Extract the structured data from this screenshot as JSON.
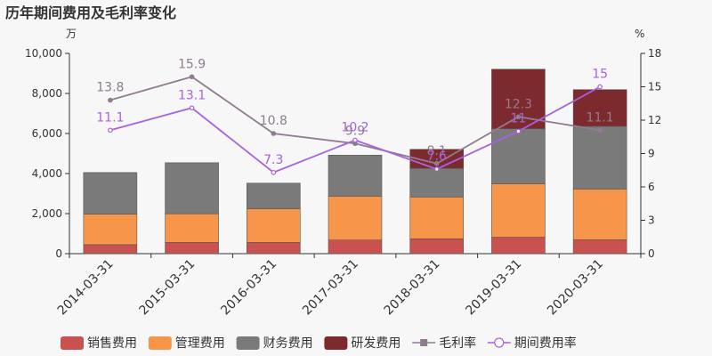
{
  "title": "历年期间费用及毛利率变化",
  "chart_data": {
    "type": "bar",
    "stacked": true,
    "title": "历年期间费用及毛利率变化",
    "y_unit_left": "万",
    "y_unit_right": "%",
    "categories": [
      "2014-03-31",
      "2015-03-31",
      "2016-03-31",
      "2017-03-31",
      "2018-03-31",
      "2019-03-31",
      "2020-03-31"
    ],
    "ylim": [
      0,
      10000
    ],
    "yticks": [
      "0",
      "2,000",
      "4,000",
      "6,000",
      "8,000",
      "10,000"
    ],
    "ylim_right": [
      0,
      18
    ],
    "yticks_right": [
      "0",
      "3",
      "6",
      "9",
      "12",
      "15",
      "18"
    ],
    "series": [
      {
        "name": "销售费用",
        "kind": "bar",
        "axis": "left",
        "color": "#c9514f",
        "values": [
          450,
          560,
          560,
          680,
          740,
          820,
          690
        ]
      },
      {
        "name": "管理费用",
        "kind": "bar",
        "axis": "left",
        "color": "#f7954a",
        "values": [
          1520,
          1430,
          1680,
          2190,
          2090,
          2660,
          2540
        ]
      },
      {
        "name": "财务费用",
        "kind": "bar",
        "axis": "left",
        "color": "#7a7a7a",
        "values": [
          2080,
          2550,
          1280,
          2050,
          1430,
          2760,
          3130
        ]
      },
      {
        "name": "研发费用",
        "kind": "bar",
        "axis": "left",
        "color": "#7c2a2e",
        "values": [
          0,
          0,
          0,
          0,
          950,
          2970,
          1830
        ]
      },
      {
        "name": "毛利率",
        "kind": "line",
        "axis": "right",
        "color": "#8e7c8f",
        "values": [
          13.8,
          15.9,
          10.8,
          9.9,
          8.1,
          12.3,
          11.1
        ],
        "labels": [
          "13.8",
          "15.9",
          "10.8",
          "9.9",
          "8.1",
          "12.3",
          "11.1"
        ]
      },
      {
        "name": "期间费用率",
        "kind": "line",
        "axis": "right",
        "color": "#a762e0",
        "values": [
          11.1,
          13.1,
          7.3,
          10.2,
          7.6,
          11,
          15
        ],
        "labels": [
          "11.1",
          "13.1",
          "7.3",
          "10.2",
          "7.6",
          "11",
          "15"
        ]
      }
    ],
    "grid": false,
    "legend_position": "bottom"
  }
}
